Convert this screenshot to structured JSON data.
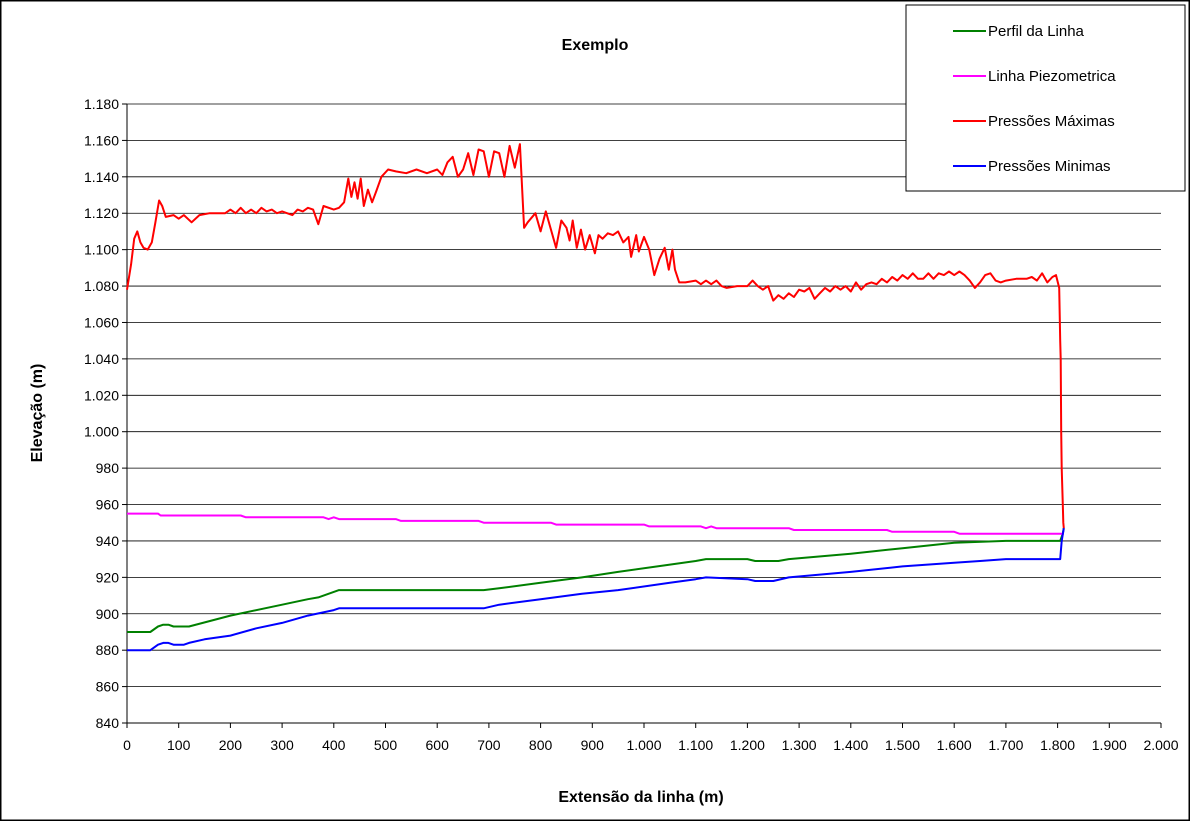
{
  "chart_data": {
    "type": "line",
    "title": "Exemplo",
    "xlabel": "Extensão da linha (m)",
    "ylabel": "Elevação (m)",
    "xlim": [
      0,
      2000
    ],
    "ylim": [
      840,
      1180
    ],
    "x_ticks": [
      0,
      100,
      200,
      300,
      400,
      500,
      600,
      700,
      800,
      900,
      1000,
      1100,
      1200,
      1300,
      1400,
      1500,
      1600,
      1700,
      1800,
      1900,
      2000
    ],
    "x_tick_labels": [
      "0",
      "100",
      "200",
      "300",
      "400",
      "500",
      "600",
      "700",
      "800",
      "900",
      "1.000",
      "1.100",
      "1.200",
      "1.300",
      "1.400",
      "1.500",
      "1.600",
      "1.700",
      "1.800",
      "1.900",
      "2.000"
    ],
    "y_ticks": [
      840,
      860,
      880,
      900,
      920,
      940,
      960,
      980,
      1000,
      1020,
      1040,
      1060,
      1080,
      1100,
      1120,
      1140,
      1160,
      1180
    ],
    "y_tick_labels": [
      "840",
      "860",
      "880",
      "900",
      "920",
      "940",
      "960",
      "980",
      "1.000",
      "1.020",
      "1.040",
      "1.060",
      "1.080",
      "1.100",
      "1.120",
      "1.140",
      "1.160",
      "1.180"
    ],
    "grid": "horizontal",
    "legend_position": "top-right",
    "series": [
      {
        "name": "Perfil da Linha",
        "color": "#008000",
        "points": [
          [
            0,
            890
          ],
          [
            45,
            890
          ],
          [
            60,
            893
          ],
          [
            70,
            894
          ],
          [
            80,
            894
          ],
          [
            90,
            893
          ],
          [
            120,
            893
          ],
          [
            200,
            899
          ],
          [
            300,
            905
          ],
          [
            350,
            908
          ],
          [
            370,
            909
          ],
          [
            410,
            913
          ],
          [
            690,
            913
          ],
          [
            720,
            914
          ],
          [
            800,
            917
          ],
          [
            880,
            920
          ],
          [
            950,
            923
          ],
          [
            1050,
            927
          ],
          [
            1100,
            929
          ],
          [
            1120,
            930
          ],
          [
            1200,
            930
          ],
          [
            1215,
            929
          ],
          [
            1260,
            929
          ],
          [
            1280,
            930
          ],
          [
            1400,
            933
          ],
          [
            1500,
            936
          ],
          [
            1600,
            939
          ],
          [
            1700,
            940
          ],
          [
            1805,
            940
          ],
          [
            1810,
            944
          ],
          [
            1812,
            947
          ]
        ]
      },
      {
        "name": "Linha Piezometrica",
        "color": "#FF00FF",
        "points": [
          [
            0,
            955
          ],
          [
            60,
            955
          ],
          [
            65,
            954
          ],
          [
            220,
            954
          ],
          [
            230,
            953
          ],
          [
            380,
            953
          ],
          [
            390,
            952
          ],
          [
            400,
            953
          ],
          [
            410,
            952
          ],
          [
            520,
            952
          ],
          [
            530,
            951
          ],
          [
            680,
            951
          ],
          [
            690,
            950
          ],
          [
            820,
            950
          ],
          [
            830,
            949
          ],
          [
            1000,
            949
          ],
          [
            1010,
            948
          ],
          [
            1110,
            948
          ],
          [
            1120,
            947
          ],
          [
            1130,
            948
          ],
          [
            1140,
            947
          ],
          [
            1280,
            947
          ],
          [
            1290,
            946
          ],
          [
            1470,
            946
          ],
          [
            1480,
            945
          ],
          [
            1600,
            945
          ],
          [
            1610,
            944
          ],
          [
            1790,
            944
          ],
          [
            1812,
            944
          ]
        ]
      },
      {
        "name": "Pressões Máximas",
        "color": "#FF0000",
        "points": [
          [
            0,
            1078
          ],
          [
            8,
            1092
          ],
          [
            14,
            1106
          ],
          [
            20,
            1110
          ],
          [
            26,
            1104
          ],
          [
            32,
            1101
          ],
          [
            40,
            1100
          ],
          [
            48,
            1104
          ],
          [
            55,
            1115
          ],
          [
            62,
            1127
          ],
          [
            68,
            1124
          ],
          [
            75,
            1118
          ],
          [
            90,
            1119
          ],
          [
            100,
            1117
          ],
          [
            110,
            1119
          ],
          [
            125,
            1115
          ],
          [
            140,
            1119
          ],
          [
            160,
            1120
          ],
          [
            190,
            1120
          ],
          [
            200,
            1122
          ],
          [
            210,
            1120
          ],
          [
            220,
            1123
          ],
          [
            230,
            1120
          ],
          [
            240,
            1122
          ],
          [
            250,
            1120
          ],
          [
            260,
            1123
          ],
          [
            270,
            1121
          ],
          [
            280,
            1122
          ],
          [
            290,
            1120
          ],
          [
            300,
            1121
          ],
          [
            320,
            1119
          ],
          [
            330,
            1122
          ],
          [
            340,
            1121
          ],
          [
            350,
            1123
          ],
          [
            360,
            1122
          ],
          [
            370,
            1114
          ],
          [
            380,
            1124
          ],
          [
            400,
            1122
          ],
          [
            410,
            1123
          ],
          [
            420,
            1126
          ],
          [
            428,
            1139
          ],
          [
            434,
            1129
          ],
          [
            440,
            1137
          ],
          [
            446,
            1128
          ],
          [
            452,
            1139
          ],
          [
            458,
            1124
          ],
          [
            466,
            1133
          ],
          [
            474,
            1126
          ],
          [
            482,
            1132
          ],
          [
            492,
            1140
          ],
          [
            505,
            1144
          ],
          [
            520,
            1143
          ],
          [
            540,
            1142
          ],
          [
            560,
            1144
          ],
          [
            580,
            1142
          ],
          [
            600,
            1144
          ],
          [
            610,
            1141
          ],
          [
            620,
            1148
          ],
          [
            630,
            1151
          ],
          [
            640,
            1140
          ],
          [
            650,
            1144
          ],
          [
            660,
            1153
          ],
          [
            670,
            1141
          ],
          [
            680,
            1155
          ],
          [
            690,
            1154
          ],
          [
            700,
            1140
          ],
          [
            710,
            1154
          ],
          [
            720,
            1153
          ],
          [
            730,
            1140
          ],
          [
            740,
            1157
          ],
          [
            750,
            1145
          ],
          [
            760,
            1158
          ],
          [
            768,
            1112
          ],
          [
            775,
            1115
          ],
          [
            790,
            1120
          ],
          [
            800,
            1110
          ],
          [
            810,
            1121
          ],
          [
            830,
            1101
          ],
          [
            840,
            1116
          ],
          [
            850,
            1112
          ],
          [
            856,
            1105
          ],
          [
            862,
            1116
          ],
          [
            870,
            1101
          ],
          [
            878,
            1111
          ],
          [
            886,
            1100
          ],
          [
            895,
            1108
          ],
          [
            905,
            1098
          ],
          [
            912,
            1108
          ],
          [
            920,
            1106
          ],
          [
            930,
            1109
          ],
          [
            940,
            1108
          ],
          [
            950,
            1110
          ],
          [
            960,
            1104
          ],
          [
            970,
            1107
          ],
          [
            975,
            1096
          ],
          [
            985,
            1108
          ],
          [
            990,
            1099
          ],
          [
            1000,
            1107
          ],
          [
            1010,
            1100
          ],
          [
            1020,
            1086
          ],
          [
            1030,
            1095
          ],
          [
            1040,
            1101
          ],
          [
            1048,
            1089
          ],
          [
            1055,
            1100
          ],
          [
            1060,
            1089
          ],
          [
            1068,
            1082
          ],
          [
            1080,
            1082
          ],
          [
            1100,
            1083
          ],
          [
            1110,
            1081
          ],
          [
            1120,
            1083
          ],
          [
            1130,
            1081
          ],
          [
            1140,
            1083
          ],
          [
            1150,
            1080
          ],
          [
            1160,
            1079
          ],
          [
            1180,
            1080
          ],
          [
            1200,
            1080
          ],
          [
            1210,
            1083
          ],
          [
            1220,
            1080
          ],
          [
            1230,
            1078
          ],
          [
            1240,
            1080
          ],
          [
            1250,
            1072
          ],
          [
            1260,
            1075
          ],
          [
            1270,
            1073
          ],
          [
            1280,
            1076
          ],
          [
            1290,
            1074
          ],
          [
            1300,
            1078
          ],
          [
            1310,
            1077
          ],
          [
            1320,
            1079
          ],
          [
            1330,
            1073
          ],
          [
            1340,
            1076
          ],
          [
            1350,
            1079
          ],
          [
            1360,
            1077
          ],
          [
            1370,
            1080
          ],
          [
            1380,
            1078
          ],
          [
            1390,
            1080
          ],
          [
            1400,
            1077
          ],
          [
            1410,
            1082
          ],
          [
            1420,
            1078
          ],
          [
            1430,
            1081
          ],
          [
            1440,
            1082
          ],
          [
            1450,
            1081
          ],
          [
            1460,
            1084
          ],
          [
            1470,
            1082
          ],
          [
            1480,
            1085
          ],
          [
            1490,
            1083
          ],
          [
            1500,
            1086
          ],
          [
            1510,
            1084
          ],
          [
            1520,
            1087
          ],
          [
            1530,
            1084
          ],
          [
            1540,
            1084
          ],
          [
            1550,
            1087
          ],
          [
            1560,
            1084
          ],
          [
            1570,
            1087
          ],
          [
            1580,
            1086
          ],
          [
            1590,
            1088
          ],
          [
            1600,
            1086
          ],
          [
            1610,
            1088
          ],
          [
            1620,
            1086
          ],
          [
            1630,
            1083
          ],
          [
            1640,
            1079
          ],
          [
            1650,
            1082
          ],
          [
            1660,
            1086
          ],
          [
            1670,
            1087
          ],
          [
            1680,
            1083
          ],
          [
            1690,
            1082
          ],
          [
            1700,
            1083
          ],
          [
            1720,
            1084
          ],
          [
            1740,
            1084
          ],
          [
            1750,
            1085
          ],
          [
            1760,
            1083
          ],
          [
            1770,
            1087
          ],
          [
            1780,
            1082
          ],
          [
            1790,
            1085
          ],
          [
            1797,
            1086
          ],
          [
            1803,
            1079
          ],
          [
            1805,
            1050
          ],
          [
            1806,
            1040
          ],
          [
            1807,
            1000
          ],
          [
            1808,
            980
          ],
          [
            1810,
            960
          ],
          [
            1811,
            950
          ],
          [
            1812,
            947
          ]
        ]
      },
      {
        "name": "Pressões Minimas",
        "color": "#0000FF",
        "points": [
          [
            0,
            880
          ],
          [
            45,
            880
          ],
          [
            60,
            883
          ],
          [
            70,
            884
          ],
          [
            80,
            884
          ],
          [
            90,
            883
          ],
          [
            110,
            883
          ],
          [
            120,
            884
          ],
          [
            150,
            886
          ],
          [
            200,
            888
          ],
          [
            250,
            892
          ],
          [
            300,
            895
          ],
          [
            350,
            899
          ],
          [
            400,
            902
          ],
          [
            410,
            903
          ],
          [
            690,
            903
          ],
          [
            720,
            905
          ],
          [
            800,
            908
          ],
          [
            880,
            911
          ],
          [
            950,
            913
          ],
          [
            1050,
            917
          ],
          [
            1100,
            919
          ],
          [
            1120,
            920
          ],
          [
            1200,
            919
          ],
          [
            1215,
            918
          ],
          [
            1250,
            918
          ],
          [
            1280,
            920
          ],
          [
            1400,
            923
          ],
          [
            1500,
            926
          ],
          [
            1600,
            928
          ],
          [
            1650,
            929
          ],
          [
            1700,
            930
          ],
          [
            1805,
            930
          ],
          [
            1808,
            940
          ],
          [
            1812,
            947
          ]
        ]
      }
    ]
  }
}
